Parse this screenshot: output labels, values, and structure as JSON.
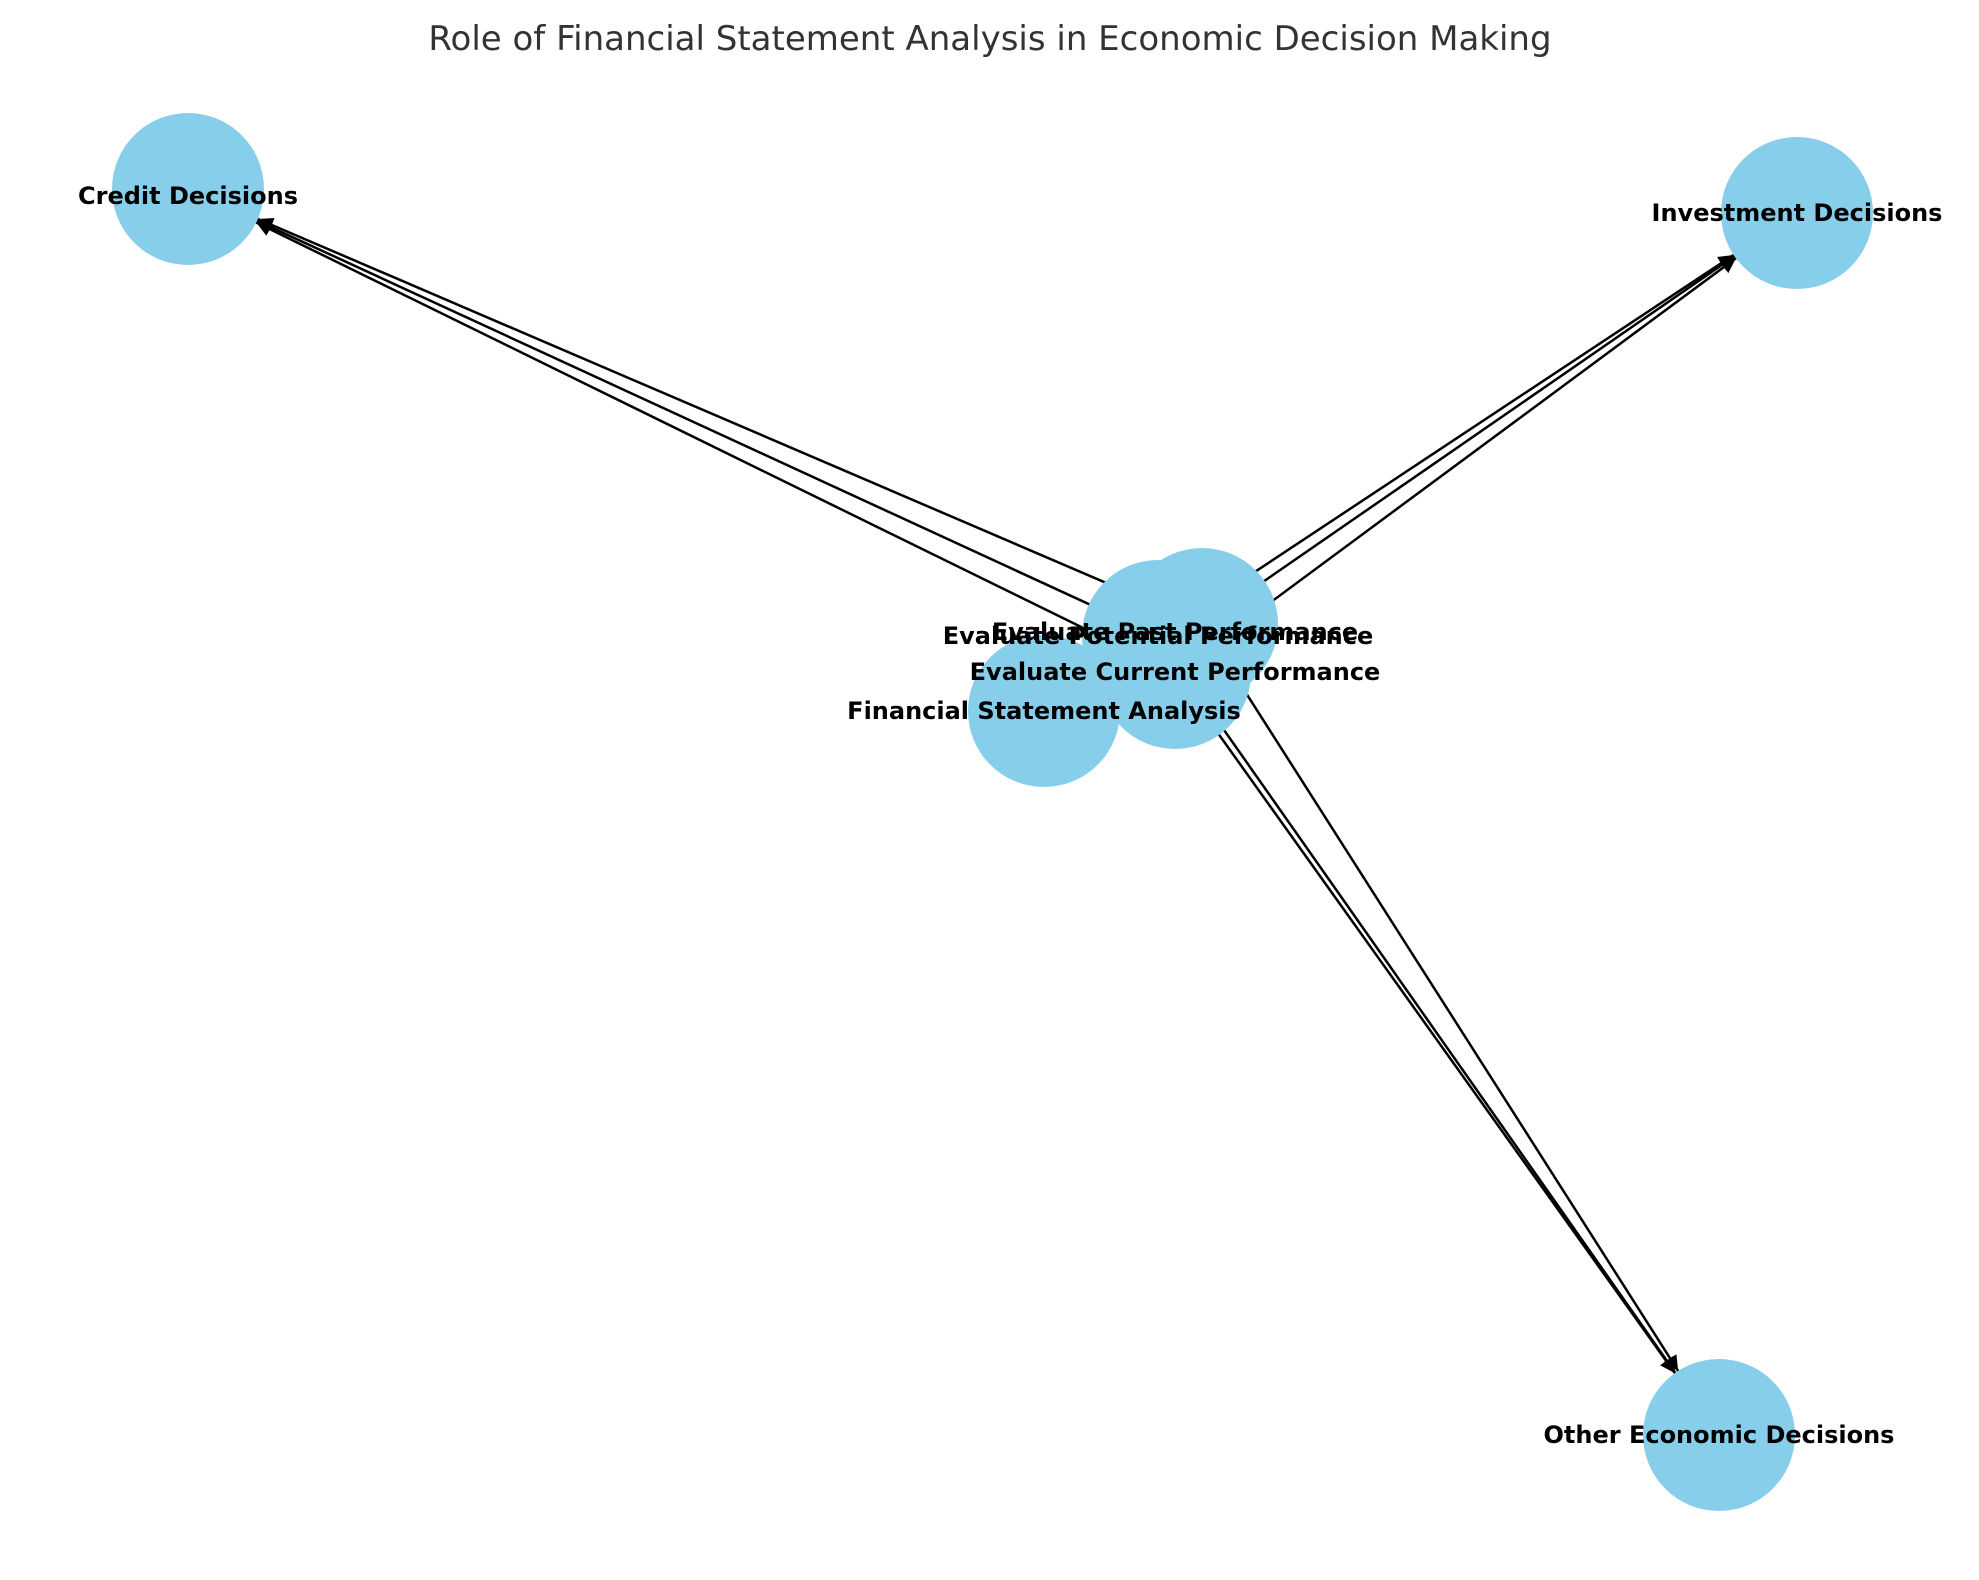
{
  "diagram": {
    "title": "Role of Financial Statement Analysis in Economic Decision Making",
    "node_color": "#87CEEB",
    "edge_color": "#000000",
    "nodes": [
      {
        "id": "fsa",
        "label": "Financial Statement Analysis"
      },
      {
        "id": "past",
        "label": "Evaluate Past Performance"
      },
      {
        "id": "current",
        "label": "Evaluate Current Performance"
      },
      {
        "id": "potential",
        "label": "Evaluate Potential Performance"
      },
      {
        "id": "credit",
        "label": "Credit Decisions"
      },
      {
        "id": "investment",
        "label": "Investment Decisions"
      },
      {
        "id": "other",
        "label": "Other Economic Decisions"
      }
    ],
    "edges": [
      {
        "from": "past",
        "to": "credit"
      },
      {
        "from": "current",
        "to": "credit"
      },
      {
        "from": "potential",
        "to": "credit"
      },
      {
        "from": "past",
        "to": "investment"
      },
      {
        "from": "current",
        "to": "investment"
      },
      {
        "from": "potential",
        "to": "investment"
      },
      {
        "from": "past",
        "to": "other"
      },
      {
        "from": "current",
        "to": "other"
      },
      {
        "from": "potential",
        "to": "other"
      }
    ]
  }
}
